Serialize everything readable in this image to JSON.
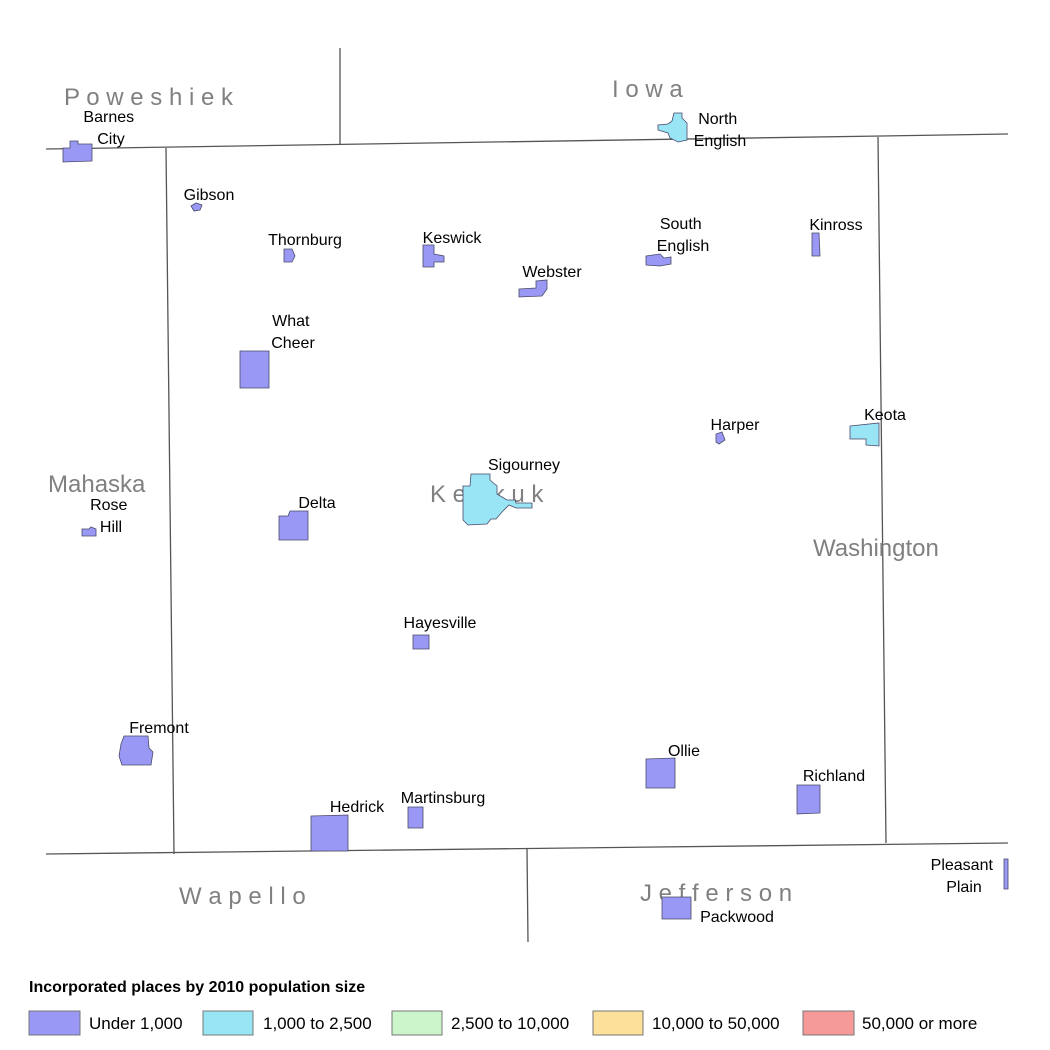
{
  "counties": {
    "poweshiek": "P o w e s h i e k",
    "iowa": "I o w a",
    "keokuk": "K e o k u k",
    "mahaska": "Mahaska",
    "washington": "Washington",
    "wapello": "W a p e l l o",
    "jefferson": "J e f f e r s o n"
  },
  "places": {
    "barnes_city": {
      "line1": "Barnes",
      "line2": "City",
      "category": "under_1000"
    },
    "north_english": {
      "line1": "North",
      "line2": "English",
      "category": "1000_2500"
    },
    "gibson": {
      "line1": "Gibson",
      "category": "under_1000"
    },
    "thornburg": {
      "line1": "Thornburg",
      "category": "under_1000"
    },
    "keswick": {
      "line1": "Keswick",
      "category": "under_1000"
    },
    "south_english": {
      "line1": "South",
      "line2": "English",
      "category": "under_1000"
    },
    "kinross": {
      "line1": "Kinross",
      "category": "under_1000"
    },
    "webster": {
      "line1": "Webster",
      "category": "under_1000"
    },
    "what_cheer": {
      "line1": "What",
      "line2": "Cheer",
      "category": "under_1000"
    },
    "harper": {
      "line1": "Harper",
      "category": "under_1000"
    },
    "keota": {
      "line1": "Keota",
      "category": "1000_2500"
    },
    "sigourney": {
      "line1": "Sigourney",
      "category": "1000_2500"
    },
    "rose_hill": {
      "line1": "Rose",
      "line2": "Hill",
      "category": "under_1000"
    },
    "delta": {
      "line1": "Delta",
      "category": "under_1000"
    },
    "hayesville": {
      "line1": "Hayesville",
      "category": "under_1000"
    },
    "fremont": {
      "line1": "Fremont",
      "category": "under_1000"
    },
    "ollie": {
      "line1": "Ollie",
      "category": "under_1000"
    },
    "richland": {
      "line1": "Richland",
      "category": "under_1000"
    },
    "hedrick": {
      "line1": "Hedrick",
      "category": "under_1000"
    },
    "martinsburg": {
      "line1": "Martinsburg",
      "category": "under_1000"
    },
    "pleasant_plain": {
      "line1": "Pleasant",
      "line2": "Plain",
      "category": "under_1000"
    },
    "packwood": {
      "line1": "Packwood",
      "category": "under_1000"
    }
  },
  "legend": {
    "title": "Incorporated places by 2010 population size",
    "items": [
      {
        "key": "under_1000",
        "label": "Under 1,000",
        "color": "#9999f5"
      },
      {
        "key": "1000_2500",
        "label": "1,000 to 2,500",
        "color": "#99e5f5"
      },
      {
        "key": "2500_10000",
        "label": "2,500 to 10,000",
        "color": "#ccf5cc"
      },
      {
        "key": "10000_50000",
        "label": "10,000 to 50,000",
        "color": "#fde09a"
      },
      {
        "key": "50000_plus",
        "label": "50,000 or more",
        "color": "#f59999"
      }
    ]
  }
}
